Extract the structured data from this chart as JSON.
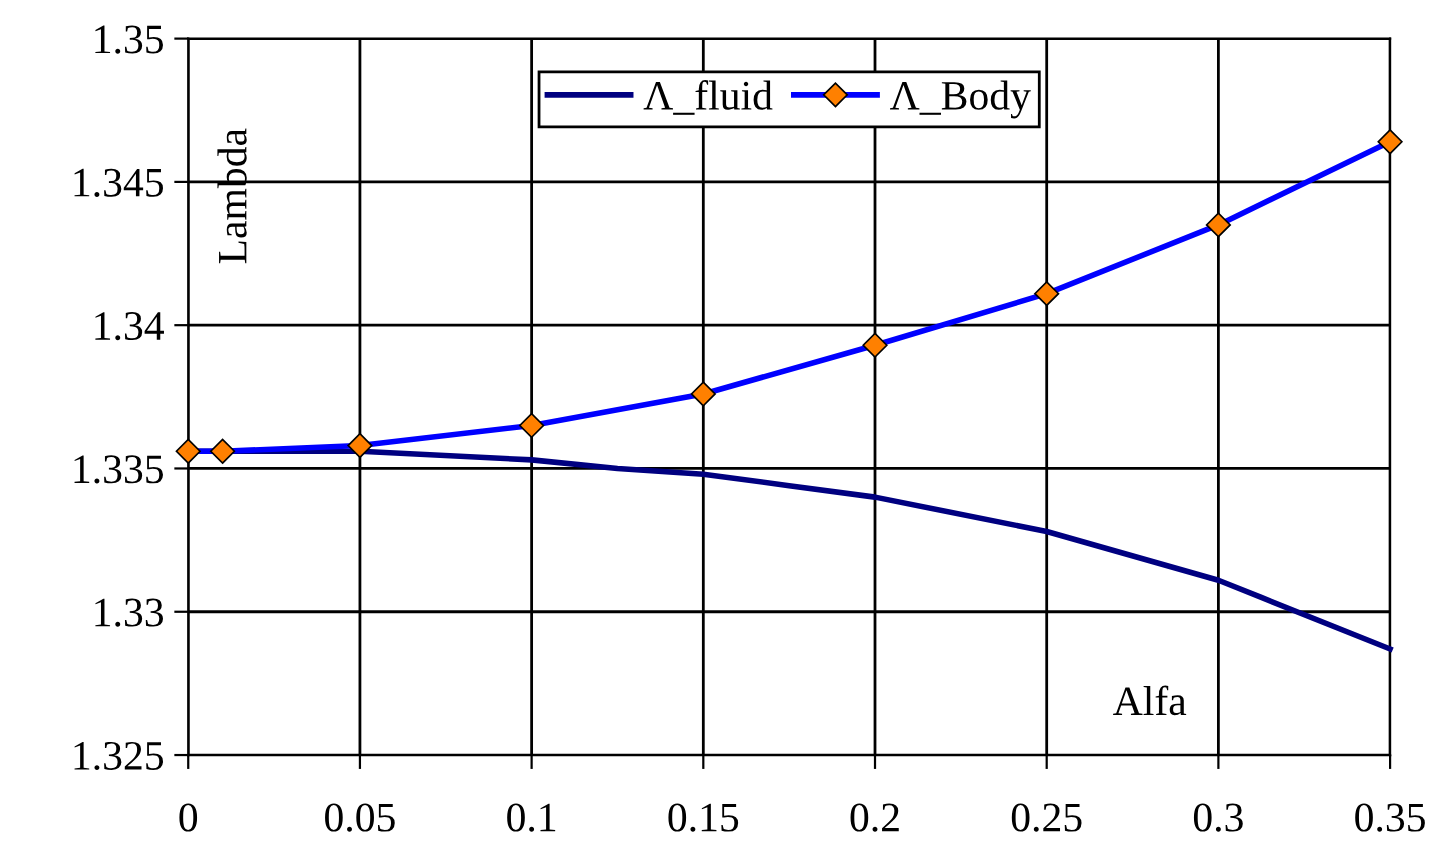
{
  "chart_data": {
    "type": "line",
    "xlabel": "Alfa",
    "ylabel": "Lambda",
    "xlim": [
      0,
      0.35
    ],
    "xticks": [
      0,
      0.05,
      0.1,
      0.15,
      0.2,
      0.25,
      0.3,
      0.35
    ],
    "ylim": [
      1.325,
      1.35
    ],
    "yticks": [
      1.325,
      1.33,
      1.335,
      1.34,
      1.345,
      1.35
    ],
    "grid": true,
    "legend": "top",
    "series": [
      {
        "name": "Λ_fluid",
        "color": "#000080",
        "marker": "none",
        "x": [
          0,
          0.05,
          0.1,
          0.125,
          0.15,
          0.175,
          0.2,
          0.25,
          0.3,
          0.3125,
          0.35
        ],
        "values": [
          1.3356,
          1.3356,
          1.3353,
          1.335,
          1.3348,
          1.3344,
          1.334,
          1.3328,
          1.3311,
          1.3305,
          1.3287
        ]
      },
      {
        "name": "Λ_Body",
        "color": "#0000ff",
        "marker": "diamond",
        "x": [
          0,
          0.01,
          0.05,
          0.1,
          0.15,
          0.2,
          0.25,
          0.3,
          0.35
        ],
        "values": [
          1.3356,
          1.3356,
          1.3358,
          1.3365,
          1.3376,
          1.3393,
          1.3411,
          1.3435,
          1.3464
        ]
      }
    ]
  }
}
